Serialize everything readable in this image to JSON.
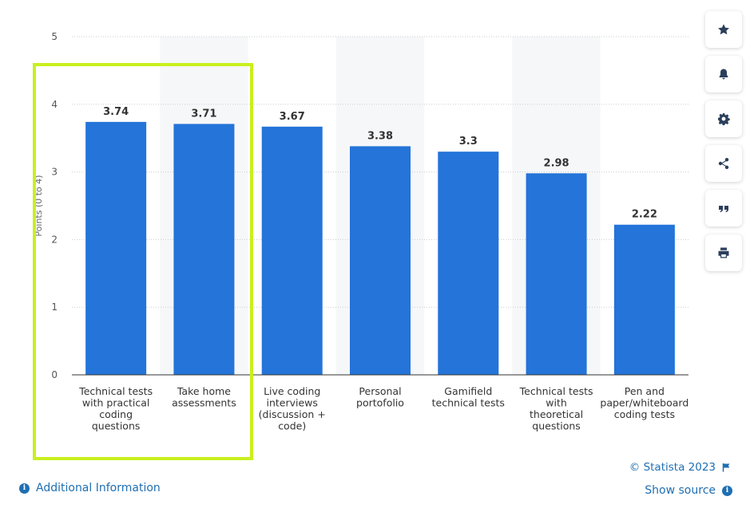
{
  "chart_data": {
    "type": "bar",
    "categories": [
      [
        "Technical tests",
        "with practical",
        "coding",
        "questions"
      ],
      [
        "Take home",
        "assessments"
      ],
      [
        "Live coding",
        "interviews",
        "(discussion +",
        "code)"
      ],
      [
        "Personal",
        "portofolio"
      ],
      [
        "Gamifield",
        "technical tests"
      ],
      [
        "Technical tests",
        "with",
        "theoretical",
        "questions"
      ],
      [
        "Pen and",
        "paper/whiteboard",
        "coding tests"
      ]
    ],
    "values": [
      3.74,
      3.71,
      3.67,
      3.38,
      3.3,
      2.98,
      2.22
    ],
    "data_labels": [
      "3.74",
      "3.71",
      "3.67",
      "3.38",
      "3.3",
      "2.98",
      "2.22"
    ],
    "ylabel": "Points (0 to 4)",
    "yticks": [
      "0",
      "1",
      "2",
      "3",
      "4",
      "5"
    ],
    "ylim": [
      0,
      5
    ],
    "grid": true,
    "colors": {
      "bar": "#2474d9",
      "highlight_box": "#c8f01e",
      "band": "#f6f7f8"
    }
  },
  "toolbar": {
    "buttons": [
      "star-icon",
      "bell-icon",
      "gear-icon",
      "share-icon",
      "quote-icon",
      "print-icon"
    ]
  },
  "footer": {
    "additional_info": "Additional Information",
    "copyright": "© Statista 2023",
    "show_source": "Show source"
  }
}
